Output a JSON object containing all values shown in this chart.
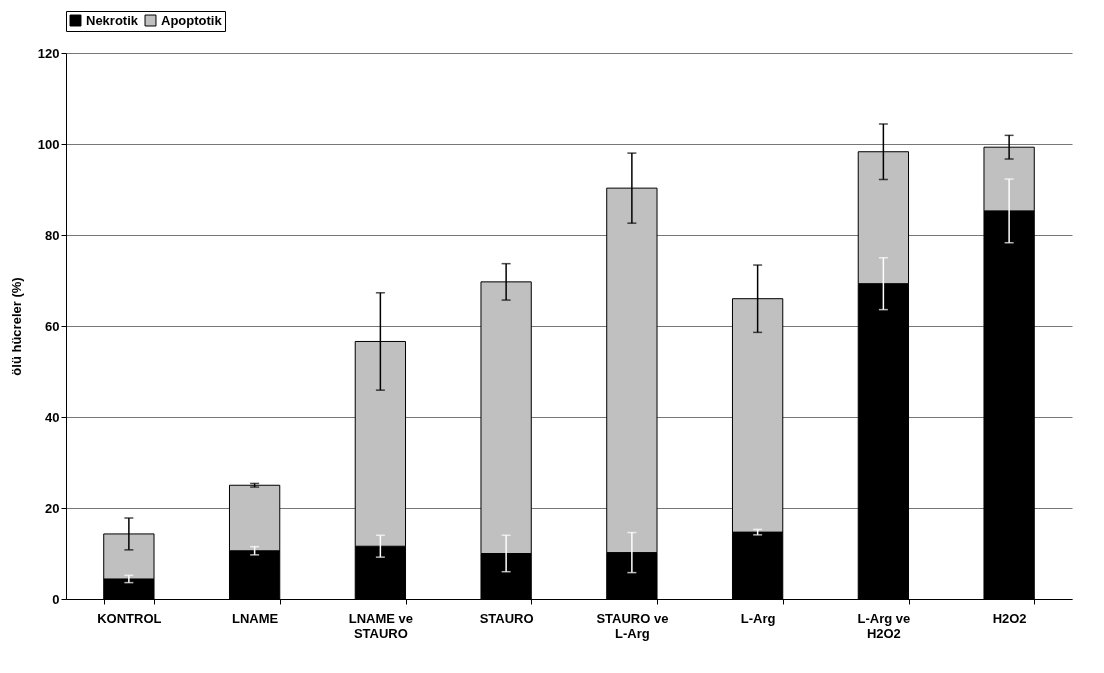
{
  "chart_data": {
    "type": "bar",
    "stacked": true,
    "ylabel": "ölü hücreler (%)",
    "categories": [
      "KONTROL",
      "LNAME",
      "LNAME ve STAURO",
      "STAURO",
      "STAURO ve L-Arg",
      "L-Arg",
      "L-Arg ve H2O2",
      "H2O2"
    ],
    "series": [
      {
        "name": "Nekrotik",
        "color": "#000000",
        "values": [
          4.4,
          10.6,
          11.6,
          10.0,
          10.2,
          14.7,
          69.3,
          85.3
        ],
        "errors": [
          0.8,
          0.9,
          2.4,
          4.0,
          4.4,
          0.6,
          5.7,
          7.0
        ]
      },
      {
        "name": "Apoptotik",
        "color": "#c0c0c0",
        "values": [
          9.9,
          14.4,
          45.0,
          59.7,
          80.1,
          51.3,
          29.0,
          14.0
        ],
        "errors": [
          3.5,
          0.4,
          10.7,
          4.0,
          7.7,
          7.4,
          6.1,
          2.6
        ]
      }
    ],
    "ylim": [
      0,
      120
    ],
    "yticks": [
      0,
      20,
      40,
      60,
      80,
      100,
      120
    ],
    "grid": "y",
    "legend": "top"
  }
}
